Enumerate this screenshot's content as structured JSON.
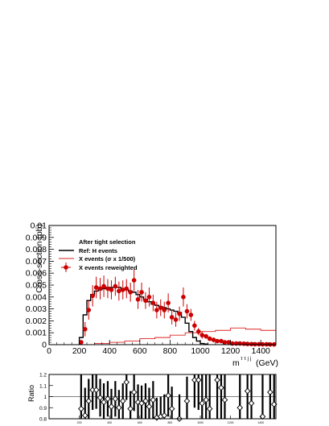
{
  "chart_data": [
    {
      "type": "histogram",
      "ylabel": "Cross-section (pb)",
      "xlabel": "m",
      "xlabel_superscript": "τ τ j j",
      "xlabel_unit": "(GeV)",
      "xlim": [
        0,
        1500
      ],
      "ylim": [
        0,
        0.01
      ],
      "x_ticks": [
        "0",
        "200",
        "400",
        "600",
        "800",
        "1000",
        "1200",
        "1400"
      ],
      "y_ticks": [
        "0",
        "0.001",
        "0.002",
        "0.003",
        "0.004",
        "0.005",
        "0.006",
        "0.007",
        "0.008",
        "0.009",
        "0.01"
      ],
      "legend": {
        "header": "After tight selection",
        "placement": "top-left",
        "entries": [
          {
            "label": "Ref: H events",
            "color": "#000000",
            "style": "line"
          },
          {
            "label": "X events (σ x 1/500)",
            "color": "#dd2222",
            "style": "line"
          },
          {
            "label": "X events reweighted",
            "color": "#cc0000",
            "style": "marker"
          }
        ]
      },
      "bin_width": 25,
      "series": [
        {
          "name": "Ref: H events",
          "kind": "step",
          "color": "#000000",
          "x_start": 200,
          "values": [
            0.0006,
            0.0025,
            0.0037,
            0.0042,
            0.0045,
            0.0046,
            0.0047,
            0.0048,
            0.0048,
            0.0048,
            0.0048,
            0.0047,
            0.0046,
            0.0045,
            0.0044,
            0.0042,
            0.004,
            0.0038,
            0.0036,
            0.0034,
            0.0033,
            0.0032,
            0.0031,
            0.003,
            0.0029,
            0.0028,
            0.0027,
            0.0023,
            0.0018,
            0.0011,
            0.0006,
            0.0003,
            0.0001,
            5e-05
          ]
        },
        {
          "name": "X events (σ x 1/500)",
          "kind": "step",
          "color": "#dd2222",
          "x": [
            0,
            200,
            300,
            400,
            500,
            600,
            700,
            800,
            900,
            1000,
            1100,
            1200,
            1250,
            1300,
            1400,
            1500
          ],
          "y": [
            0,
            0,
            0.0001,
            0.0002,
            0.0003,
            0.0005,
            0.0006,
            0.0008,
            0.001,
            0.0011,
            0.0012,
            0.0014,
            0.0014,
            0.0013,
            0.0012,
            0.001
          ]
        },
        {
          "name": "X events reweighted",
          "kind": "points",
          "color": "#cc0000",
          "x": [
            212,
            238,
            262,
            288,
            312,
            338,
            362,
            388,
            412,
            438,
            462,
            488,
            512,
            538,
            562,
            588,
            612,
            638,
            662,
            688,
            712,
            738,
            762,
            788,
            812,
            838,
            862,
            888,
            912,
            938,
            962,
            988,
            1012,
            1038,
            1062,
            1088,
            1112,
            1138,
            1162,
            1188,
            1212,
            1238,
            1262,
            1288,
            1312,
            1338,
            1362,
            1388,
            1412,
            1438,
            1462,
            1488
          ],
          "y": [
            0.0002,
            0.0013,
            0.0029,
            0.0041,
            0.0048,
            0.0047,
            0.0049,
            0.0047,
            0.0046,
            0.0049,
            0.0045,
            0.0046,
            0.0047,
            0.0044,
            0.0054,
            0.0038,
            0.0044,
            0.0037,
            0.004,
            0.0035,
            0.0029,
            0.0031,
            0.0029,
            0.0035,
            0.0023,
            0.0021,
            0.0026,
            0.004,
            0.0028,
            0.0025,
            0.0016,
            0.0011,
            0.0008,
            0.0007,
            0.0005,
            0.0004,
            0.0003,
            0.0003,
            0.0002,
            0.0002,
            0.0001,
            0.0001,
            0.0001,
            8e-05,
            6e-05,
            5e-05,
            4e-05,
            4e-05,
            3e-05,
            3e-05,
            2e-05,
            2e-05
          ],
          "err": [
            0.0002,
            0.0006,
            0.0008,
            0.0009,
            0.0009,
            0.0009,
            0.0009,
            0.0008,
            0.0008,
            0.0008,
            0.0008,
            0.0008,
            0.0008,
            0.0008,
            0.0009,
            0.0008,
            0.0008,
            0.0007,
            0.0008,
            0.0007,
            0.0007,
            0.0007,
            0.0007,
            0.0008,
            0.0006,
            0.0006,
            0.0006,
            0.0008,
            0.0006,
            0.0005,
            0.0004,
            0.0003,
            0.0003,
            0.0002,
            0.0002,
            0.0002,
            0.0001,
            0.0001,
            0.0001,
            0.0001,
            5e-05,
            5e-05,
            5e-05,
            4e-05,
            3e-05,
            3e-05,
            3e-05,
            3e-05,
            2e-05,
            2e-05,
            2e-05,
            2e-05
          ]
        }
      ]
    },
    {
      "type": "scatter",
      "ylabel": "Ratio",
      "xlim": [
        0,
        1500
      ],
      "ylim": [
        0.8,
        1.2
      ],
      "y_ticks": [
        "0.8",
        "0.9",
        "1",
        "1.1",
        "1.2"
      ],
      "x_ticks": [
        "200",
        "400",
        "600",
        "800",
        "1000",
        "1200",
        "1400"
      ],
      "reference_line": 1.0,
      "series": [
        {
          "name": "ratio",
          "marker": "open-diamond",
          "x": [
            212,
            238,
            262,
            288,
            312,
            338,
            362,
            388,
            412,
            438,
            462,
            488,
            512,
            538,
            562,
            588,
            612,
            638,
            662,
            688,
            712,
            738,
            762,
            788,
            812,
            862,
            912,
            962,
            988,
            1012,
            1038,
            1062,
            1112,
            1138,
            1162,
            1262,
            1312,
            1338,
            1412,
            1462,
            1488
          ],
          "y": [
            0.89,
            0.83,
            0.96,
            1.06,
            1.06,
            0.99,
            0.95,
            0.98,
            0.91,
            0.98,
            0.9,
            0.96,
            1.13,
            0.89,
            1.04,
            0.95,
            0.94,
            0.96,
            0.91,
            0.97,
            0.81,
            0.82,
            0.83,
            1.01,
            0.89,
            0.8,
            0.96,
            1.15,
            1.15,
            0.94,
            0.97,
            0.89,
            1.15,
            1.08,
            0.97,
            0.9,
            1.05,
            0.94,
            0.82,
            1.04,
            0.93
          ],
          "err": [
            0.35,
            0.25,
            0.2,
            0.18,
            0.17,
            0.17,
            0.17,
            0.16,
            0.16,
            0.16,
            0.16,
            0.16,
            0.16,
            0.16,
            0.17,
            0.16,
            0.16,
            0.16,
            0.17,
            0.17,
            0.18,
            0.18,
            0.19,
            0.19,
            0.2,
            0.22,
            0.22,
            0.25,
            0.27,
            0.3,
            0.32,
            0.35,
            0.38,
            0.4,
            0.42,
            0.45,
            0.5,
            0.5,
            0.5,
            0.5,
            0.5
          ]
        }
      ]
    }
  ]
}
